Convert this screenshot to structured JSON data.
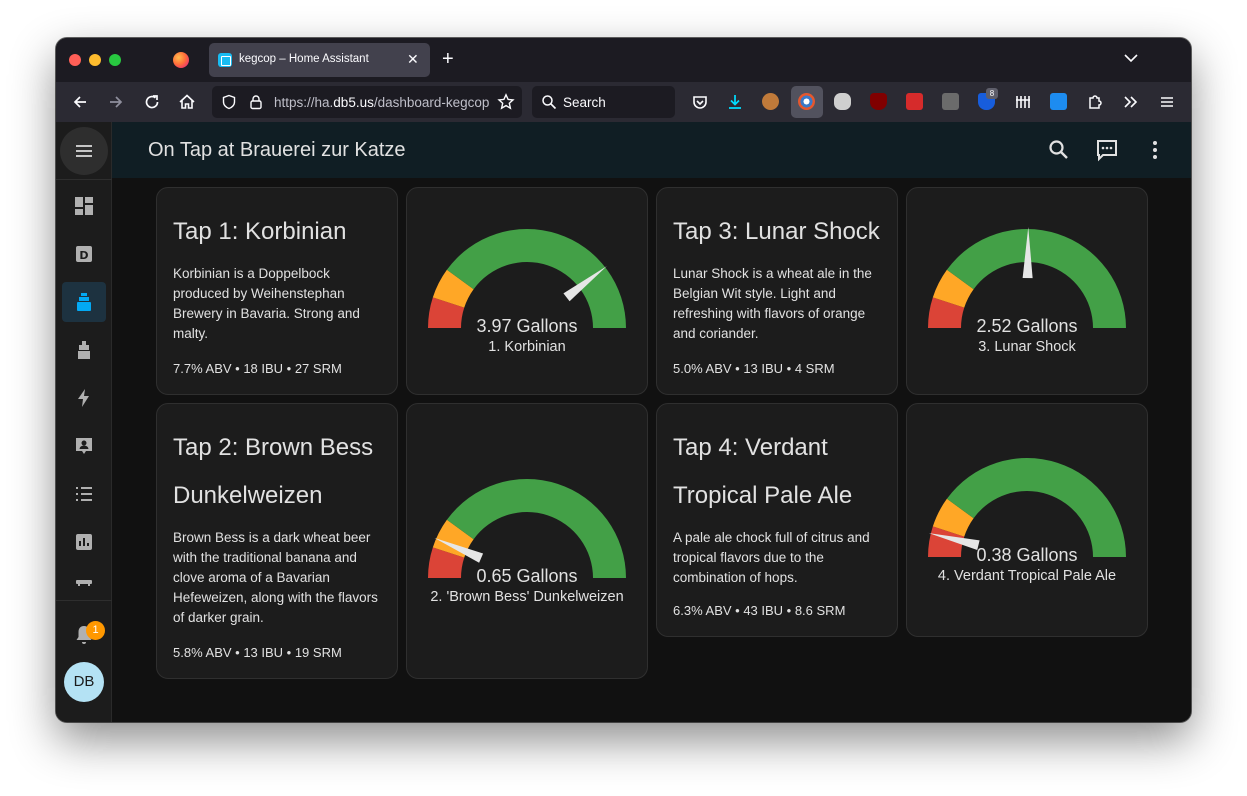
{
  "browser": {
    "tab_title": "kegcop – Home Assistant",
    "url_prefix": "https://ha.",
    "url_domain": "db5.us",
    "url_path": "/dashboard-kegcop",
    "search_placeholder": "Search",
    "extension_badge": "8"
  },
  "app": {
    "title": "On Tap at Brauerei zur Katze",
    "notification_count": "1",
    "user_initials": "DB",
    "sidebar_items": [
      "overview-icon",
      "dashboard-d-icon",
      "keg-icon",
      "coffee-icon",
      "energy-icon",
      "person-icon",
      "list-icon",
      "chart-icon",
      "device-icon"
    ]
  },
  "colors": {
    "gauge_green": "#43a047",
    "gauge_yellow": "#ffa726",
    "gauge_red": "#db4437",
    "needle": "#e6e6e6",
    "active_sidebar": "#03a9f4"
  },
  "taps": [
    {
      "title": "Tap 1: Korbinian",
      "description": "Korbinian is a Doppelbock produced by Weihenstephan Brewery in Bavaria. Strong and malty.",
      "stats": "7.7% ABV • 18 IBU • 27 SRM",
      "gauge_value": "3.97 Gallons",
      "gauge_name": "1. Korbinian",
      "fill_fraction": 0.79
    },
    {
      "title": "Tap 3: Lunar Shock",
      "description": "Lunar Shock is a wheat ale in the Belgian Wit style. Light and refreshing with flavors of orange and coriander.",
      "stats": "5.0% ABV • 13 IBU • 4 SRM",
      "gauge_value": "2.52 Gallons",
      "gauge_name": "3. Lunar Shock",
      "fill_fraction": 0.504
    },
    {
      "title": "Tap 2: Brown Bess Dunkelweizen",
      "description": "Brown Bess is a dark wheat beer with the traditional banana and clove aroma of a Bavarian Hefeweizen, along with the flavors of darker grain.",
      "stats": "5.8% ABV • 13 IBU • 19 SRM",
      "gauge_value": "0.65 Gallons",
      "gauge_name": "2. 'Brown Bess' Dunkelweizen",
      "fill_fraction": 0.13
    },
    {
      "title": "Tap 4: Verdant Tropical Pale Ale",
      "description": "A pale ale chock full of citrus and tropical flavors due to the combination of hops.",
      "stats": "6.3% ABV • 43 IBU • 8.6 SRM",
      "gauge_value": "0.38 Gallons",
      "gauge_name": "4. Verdant Tropical Pale Ale",
      "fill_fraction": 0.076
    }
  ]
}
